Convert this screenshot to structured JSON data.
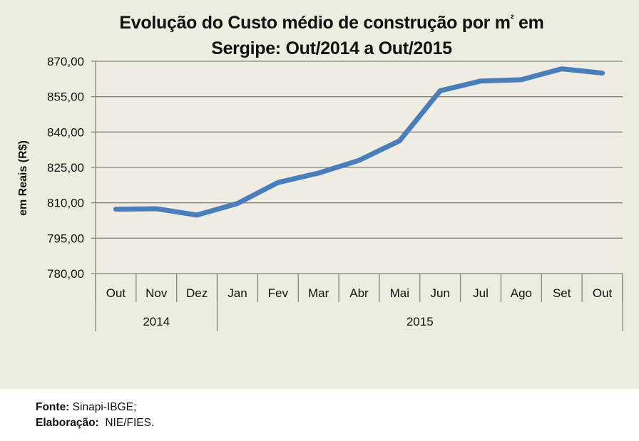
{
  "chart_data": {
    "type": "line",
    "title": "Evolução do Custo médio de construção por m² em Sergipe: Out/2014 a Out/2015",
    "title_lines": [
      "Evolução do Custo médio de construção por m",
      "²",
      " em",
      "Sergipe: Out/2014 a Out/2015"
    ],
    "xlabel": "",
    "ylabel": "em Reais (R$)",
    "ylim": [
      780,
      870
    ],
    "yticks": [
      780,
      795,
      810,
      825,
      840,
      855,
      870
    ],
    "ytick_labels": [
      "780,00",
      "795,00",
      "810,00",
      "825,00",
      "840,00",
      "855,00",
      "870,00"
    ],
    "grid": true,
    "legend": "none",
    "categories": [
      "Out",
      "Nov",
      "Dez",
      "Jan",
      "Fev",
      "Mar",
      "Abr",
      "Mai",
      "Jun",
      "Jul",
      "Ago",
      "Set",
      "Out"
    ],
    "category_groups": [
      {
        "label": "2014",
        "count": 3
      },
      {
        "label": "2015",
        "count": 10
      }
    ],
    "series": [
      {
        "name": "Custo médio de construção por m²",
        "color": "#4a7ebb",
        "values": [
          807.3,
          807.5,
          804.8,
          809.7,
          818.6,
          822.6,
          828.0,
          836.3,
          857.5,
          861.6,
          862.2,
          866.8,
          865.0
        ]
      }
    ]
  },
  "footer": {
    "source_label": "Fonte:",
    "source_value": "Sinapi-IBGE;",
    "credit_label": "Elaboração:",
    "credit_value": "NIE/FIES."
  }
}
